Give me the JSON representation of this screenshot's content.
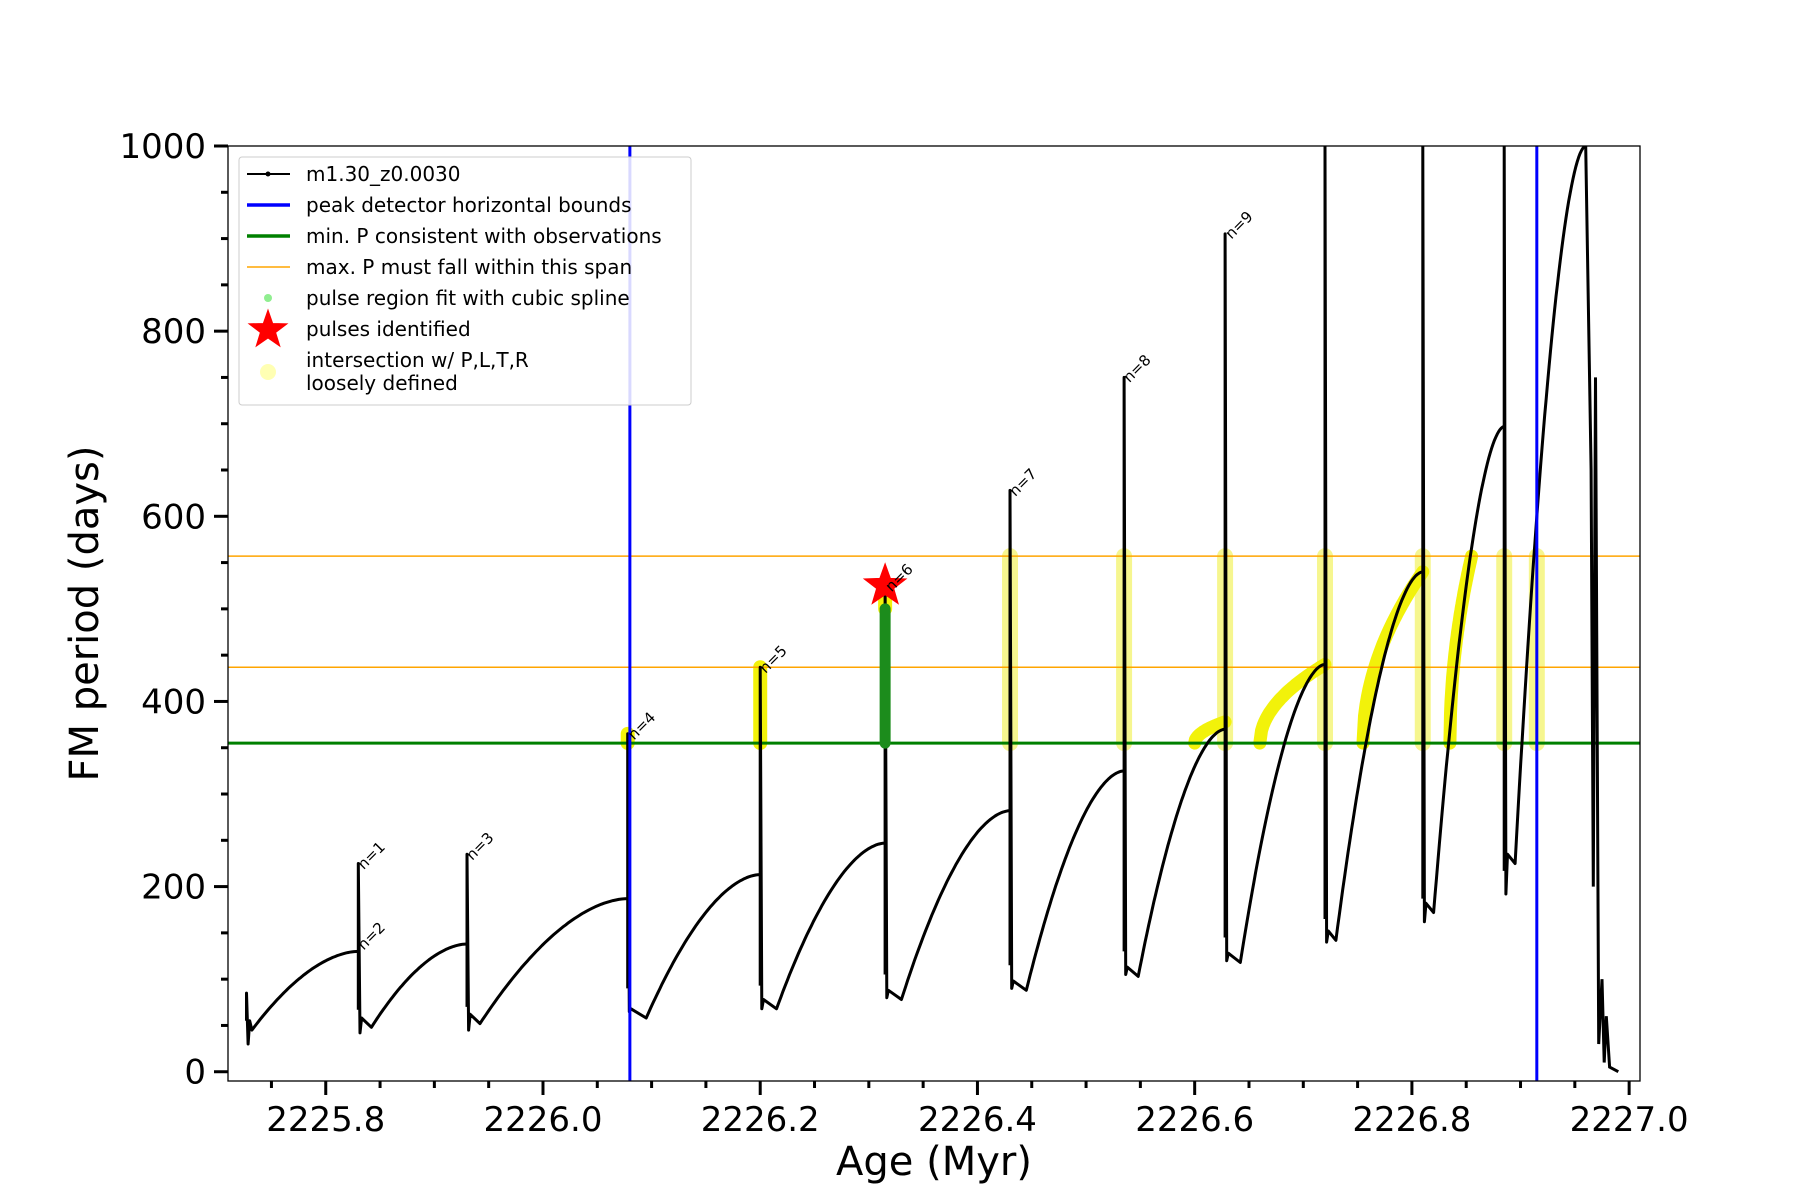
{
  "chart_data": {
    "type": "line",
    "xlabel": "Age (Myr)",
    "ylabel": "FM period (days)",
    "xlim": [
      2225.71,
      2227.01
    ],
    "ylim": [
      -10,
      1000
    ],
    "x_ticks": [
      2225.8,
      2226.0,
      2226.2,
      2226.4,
      2226.6,
      2226.8,
      2227.0
    ],
    "x_tick_labels": [
      "2225.8",
      "2226.0",
      "2226.2",
      "2226.4",
      "2226.6",
      "2226.8",
      "2227.0"
    ],
    "x_minor_ticks": [
      2225.75,
      2225.85,
      2225.9,
      2225.95,
      2226.05,
      2226.1,
      2226.15,
      2226.25,
      2226.3,
      2226.35,
      2226.45,
      2226.5,
      2226.55,
      2226.65,
      2226.7,
      2226.75,
      2226.85,
      2226.9,
      2226.95
    ],
    "y_ticks": [
      0,
      200,
      400,
      600,
      800,
      1000
    ],
    "y_tick_labels": [
      "0",
      "200",
      "400",
      "600",
      "800",
      "1000"
    ],
    "y_minor_ticks": [
      50,
      100,
      150,
      250,
      300,
      350,
      450,
      500,
      550,
      650,
      700,
      750,
      850,
      900,
      950
    ],
    "legend_position": "upper-left",
    "legend": [
      {
        "label": "m1.30_z0.0030",
        "marker": "line-dot",
        "color": "#000000"
      },
      {
        "label": "peak detector horizontal bounds",
        "marker": "line",
        "color": "#0000ff"
      },
      {
        "label": "min. P consistent with observations",
        "marker": "line",
        "color": "#008000"
      },
      {
        "label": "max. P must fall within this span",
        "marker": "thin-line",
        "color": "#ffa500"
      },
      {
        "label": "pulse region fit with cubic spline",
        "marker": "dot",
        "color": "#90ee90"
      },
      {
        "label": "pulses identified",
        "marker": "star",
        "color": "#ff0000"
      },
      {
        "label": "intersection w/ P,L,T,R",
        "label_line2": "loosely defined",
        "marker": "circle",
        "color": "#ffffb3"
      }
    ],
    "vertical_lines": [
      {
        "x": 2226.08,
        "color": "#0000ff"
      },
      {
        "x": 2226.915,
        "color": "#0000ff"
      }
    ],
    "horizontal_lines": [
      {
        "y": 355,
        "color": "#008000",
        "width": 3
      },
      {
        "y": 557,
        "color": "#ffa500",
        "width": 1.5
      },
      {
        "y": 437,
        "color": "#ffa500",
        "width": 1.5
      }
    ],
    "series": [
      {
        "name": "m1.30_z0.0030",
        "color": "#000000",
        "cycles": [
          {
            "start": 2225.727,
            "spike": 85,
            "low": 30,
            "min": 45,
            "min_x": 2225.732,
            "end_x": 2225.83,
            "end_y": 130
          },
          {
            "start": 2225.83,
            "spike": 225,
            "low": 42,
            "min": 48,
            "min_x": 2225.842,
            "end_x": 2225.93,
            "end_y": 138
          },
          {
            "start": 2225.93,
            "spike": 235,
            "low": 45,
            "min": 52,
            "min_x": 2225.942,
            "end_x": 2226.078,
            "end_y": 187
          },
          {
            "start": 2226.078,
            "spike": 365,
            "low": 65,
            "min": 58,
            "min_x": 2226.095,
            "end_x": 2226.2,
            "end_y": 213
          },
          {
            "start": 2226.2,
            "spike": 437,
            "low": 68,
            "min": 68,
            "min_x": 2226.215,
            "end_x": 2226.315,
            "end_y": 247
          },
          {
            "start": 2226.315,
            "spike": 525,
            "low": 80,
            "min": 78,
            "min_x": 2226.33,
            "end_x": 2226.43,
            "end_y": 282
          },
          {
            "start": 2226.43,
            "spike": 628,
            "low": 90,
            "min": 88,
            "min_x": 2226.445,
            "end_x": 2226.535,
            "end_y": 325
          },
          {
            "start": 2226.535,
            "spike": 750,
            "low": 105,
            "min": 103,
            "min_x": 2226.548,
            "end_x": 2226.628,
            "end_y": 370
          },
          {
            "start": 2226.628,
            "spike": 905,
            "low": 120,
            "min": 118,
            "min_x": 2226.642,
            "end_x": 2226.72,
            "end_y": 440
          },
          {
            "start": 2226.72,
            "spike": 1000,
            "low": 140,
            "min": 142,
            "min_x": 2226.73,
            "end_x": 2226.81,
            "end_y": 540
          },
          {
            "start": 2226.81,
            "spike": 1000,
            "low": 162,
            "min": 172,
            "min_x": 2226.82,
            "end_x": 2226.885,
            "end_y": 697
          },
          {
            "start": 2226.885,
            "spike": 1000,
            "low": 192,
            "min": 225,
            "min_x": 2226.895,
            "end_x": 2226.96,
            "end_y": 1000
          }
        ],
        "tail": [
          [
            2226.96,
            1000
          ],
          [
            2226.965,
            650
          ],
          [
            2226.967,
            200
          ],
          [
            2226.969,
            750
          ],
          [
            2226.972,
            30
          ],
          [
            2226.975,
            100
          ],
          [
            2226.977,
            10
          ],
          [
            2226.979,
            60
          ],
          [
            2226.982,
            5
          ],
          [
            2226.99,
            0
          ]
        ]
      }
    ],
    "pulse_labels": [
      {
        "text": "n=1",
        "x": 2225.833,
        "y": 222
      },
      {
        "text": "n=2",
        "x": 2225.833,
        "y": 135
      },
      {
        "text": "n=3",
        "x": 2225.933,
        "y": 232
      },
      {
        "text": "n=4",
        "x": 2226.082,
        "y": 362
      },
      {
        "text": "n=5",
        "x": 2226.203,
        "y": 434
      },
      {
        "text": "n=6",
        "x": 2226.319,
        "y": 522
      },
      {
        "text": "n=7",
        "x": 2226.433,
        "y": 625
      },
      {
        "text": "n=8",
        "x": 2226.538,
        "y": 748
      },
      {
        "text": "n=9",
        "x": 2226.632,
        "y": 903
      }
    ],
    "pulse_identified": {
      "x": 2226.315,
      "y": 525
    },
    "spline_fit": {
      "x": 2226.315,
      "y_min": 355,
      "y_max": 500
    },
    "intersection_regions": [
      {
        "x": 2226.078,
        "y_min": 355,
        "y_max": 365,
        "style": "solid"
      },
      {
        "x": 2226.2,
        "y_min": 355,
        "y_max": 437,
        "style": "solid"
      },
      {
        "x": 2226.315,
        "y_min": 500,
        "y_max": 525,
        "style": "solid"
      },
      {
        "x": 2226.43,
        "y_min": 355,
        "y_max": 557,
        "style": "faint"
      },
      {
        "x": 2226.535,
        "y_min": 355,
        "y_max": 557,
        "style": "faint"
      },
      {
        "x": 2226.628,
        "y_min": 355,
        "y_max": 557,
        "style": "faint"
      },
      {
        "x": 2226.72,
        "y_min": 355,
        "y_max": 557,
        "style": "faint"
      },
      {
        "x": 2226.81,
        "y_min": 355,
        "y_max": 557,
        "style": "faint"
      },
      {
        "x": 2226.885,
        "y_min": 355,
        "y_max": 557,
        "style": "faint"
      },
      {
        "x": 2226.915,
        "y_min": 355,
        "y_max": 557,
        "style": "faint"
      }
    ],
    "intersection_curves": [
      {
        "x_start": 2226.6,
        "x_end": 2226.628,
        "y_start": 355,
        "y_end": 378
      },
      {
        "x_start": 2226.66,
        "x_end": 2226.72,
        "y_start": 355,
        "y_end": 440
      },
      {
        "x_start": 2226.755,
        "x_end": 2226.81,
        "y_start": 355,
        "y_end": 540
      },
      {
        "x_start": 2226.835,
        "x_end": 2226.855,
        "y_start": 355,
        "y_end": 557
      }
    ]
  }
}
